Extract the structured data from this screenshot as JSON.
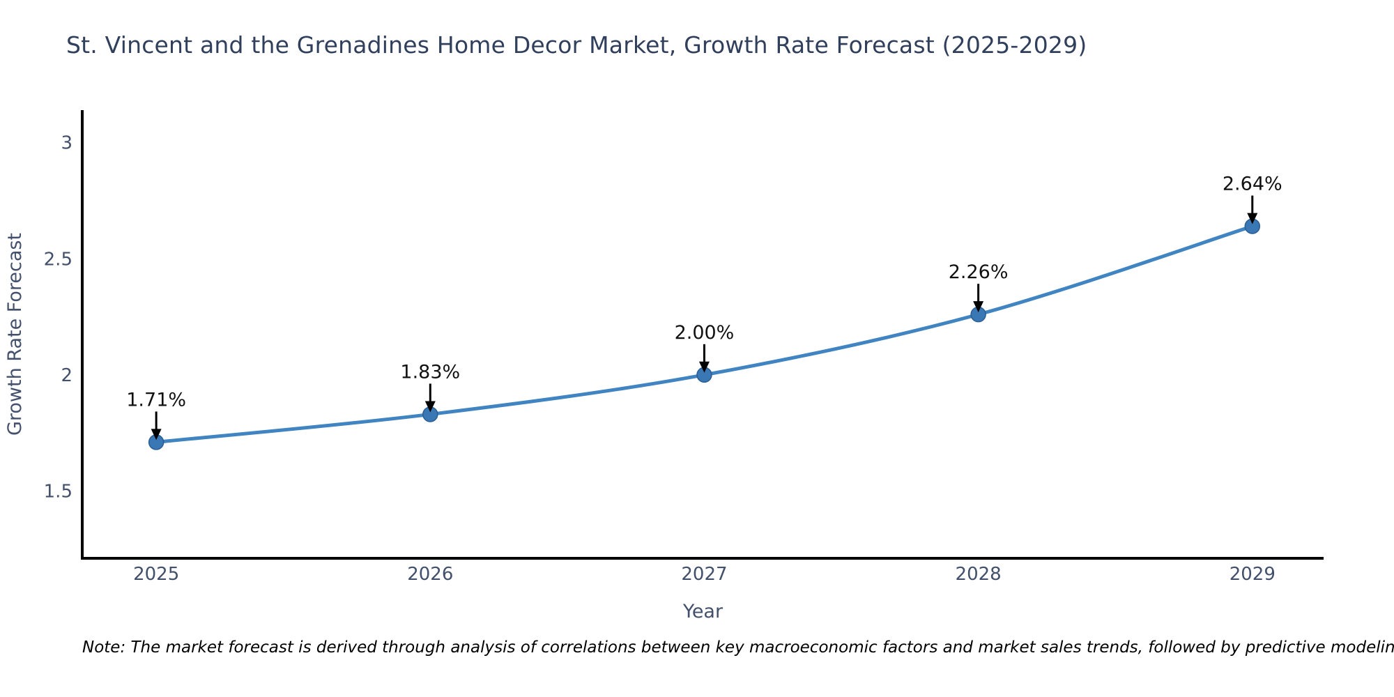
{
  "page": {
    "background": "#ffffff"
  },
  "chart_data": {
    "type": "line",
    "title": "St. Vincent and the Grenadines Home Decor Market, Growth Rate Forecast (2025-2029)",
    "xlabel": "Year",
    "ylabel": "Growth Rate Forecast",
    "x": [
      2025,
      2026,
      2027,
      2028,
      2029
    ],
    "values": [
      1.71,
      1.83,
      2.0,
      2.26,
      2.64
    ],
    "point_labels": [
      "1.71%",
      "1.83%",
      "2.00%",
      "2.26%",
      "2.64%"
    ],
    "xticks": {
      "values": [
        2025,
        2026,
        2027,
        2028,
        2029
      ],
      "labels": [
        "2025",
        "2026",
        "2027",
        "2028",
        "2029"
      ]
    },
    "yticks": {
      "values": [
        1.5,
        2,
        2.5,
        3
      ],
      "labels": [
        "1.5",
        "2",
        "2.5",
        "3"
      ]
    },
    "xlim": [
      2024.73,
      2029.26
    ],
    "ylim": [
      1.21,
      3.14
    ],
    "grid": false,
    "legend": "none",
    "line_shape": "spline",
    "annotation_style": "down-arrow",
    "colors": {
      "line": "#4084c1",
      "marker": "#3a78b5",
      "marker_edge": "#2a5d94",
      "axis": "#000000",
      "title_text": "#2f3f5c",
      "tick_text": "#42506b",
      "axis_label_text": "#42506b",
      "annotation_text": "#111111",
      "arrow": "#000000",
      "note_text": "#000000"
    }
  },
  "note": {
    "text": "Note: The market forecast is derived through analysis of correlations between key macroeconomic factors and market sales trends, followed by predictive modeling to project future sales"
  }
}
